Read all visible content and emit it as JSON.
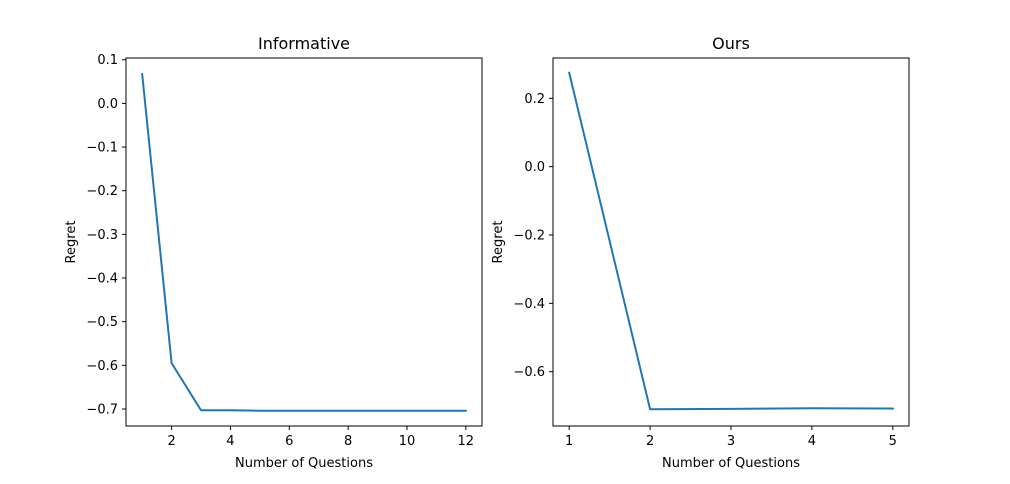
{
  "chart_data": [
    {
      "type": "line",
      "title": "Informative",
      "xlabel": "Number of Questions",
      "ylabel": "Regret",
      "xlim": [
        0.45,
        12.55
      ],
      "ylim": [
        -0.739,
        0.104
      ],
      "xticks": [
        2,
        4,
        6,
        8,
        10,
        12
      ],
      "xtick_labels": [
        "2",
        "4",
        "6",
        "8",
        "10",
        "12"
      ],
      "yticks": [
        0.1,
        0.0,
        -0.1,
        -0.2,
        -0.3,
        -0.4,
        -0.5,
        -0.6,
        -0.7
      ],
      "ytick_labels": [
        "0.1",
        "0.0",
        "−0.1",
        "−0.2",
        "−0.3",
        "−0.4",
        "−0.5",
        "−0.6",
        "−0.7"
      ],
      "grid": false,
      "series": [
        {
          "color": "#1f77b4",
          "x": [
            1,
            2,
            3,
            4,
            5,
            6,
            7,
            8,
            9,
            10,
            11,
            12
          ],
          "y": [
            0.067,
            -0.595,
            -0.703,
            -0.703,
            -0.704,
            -0.704,
            -0.704,
            -0.704,
            -0.704,
            -0.704,
            -0.704,
            -0.704
          ]
        }
      ]
    },
    {
      "type": "line",
      "title": "Ours",
      "xlabel": "Number of Questions",
      "ylabel": "Regret",
      "xlim": [
        0.8,
        5.2
      ],
      "ylim": [
        -0.759,
        0.318
      ],
      "xticks": [
        1,
        2,
        3,
        4,
        5
      ],
      "xtick_labels": [
        "1",
        "2",
        "3",
        "4",
        "5"
      ],
      "yticks": [
        0.2,
        0.0,
        -0.2,
        -0.4,
        -0.6
      ],
      "ytick_labels": [
        "0.2",
        "0.0",
        "−0.2",
        "−0.4",
        "−0.6"
      ],
      "grid": false,
      "series": [
        {
          "color": "#1f77b4",
          "x": [
            1,
            2,
            3,
            4,
            5
          ],
          "y": [
            0.275,
            -0.71,
            -0.709,
            -0.707,
            -0.708
          ]
        }
      ]
    }
  ]
}
